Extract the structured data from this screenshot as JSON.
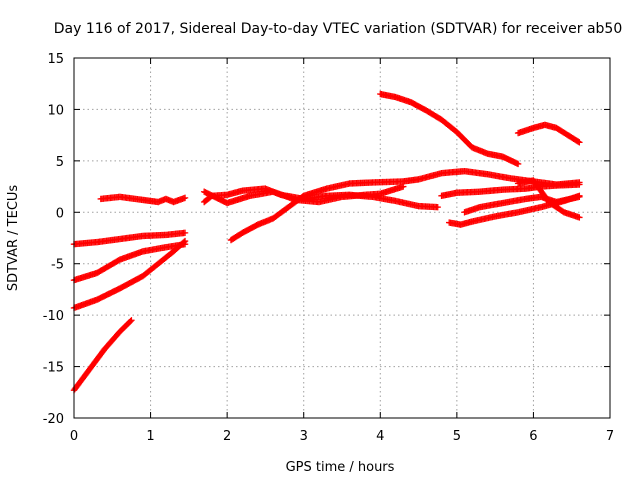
{
  "chart_data": {
    "type": "scatter",
    "title": "Day 116 of 2017, Sidereal Day-to-day VTEC variation (SDTVAR) for receiver ab50",
    "xlabel": "GPS time / hours",
    "ylabel": "SDTVAR / TECUs",
    "xlim": [
      0,
      7
    ],
    "ylim": [
      -20,
      15
    ],
    "x_ticks": [
      "0",
      "1",
      "2",
      "3",
      "4",
      "5",
      "6",
      "7"
    ],
    "y_ticks": [
      "-20",
      "-15",
      "-10",
      "-5",
      "0",
      "5",
      "10",
      "15"
    ],
    "grid": true,
    "legend": "none",
    "marker": "plus",
    "series_color": "#ff0000",
    "series": [
      {
        "x": [
          0.0,
          0.2,
          0.4,
          0.6,
          0.75
        ],
        "y": [
          -17.3,
          -15.3,
          -13.3,
          -11.6,
          -10.5
        ]
      },
      {
        "x": [
          0.0,
          0.3,
          0.6,
          0.9,
          1.1,
          1.3,
          1.45
        ],
        "y": [
          -9.3,
          -8.5,
          -7.4,
          -6.2,
          -5.0,
          -3.8,
          -2.8
        ]
      },
      {
        "x": [
          0.0,
          0.3,
          0.6,
          0.9,
          1.2,
          1.45
        ],
        "y": [
          -6.6,
          -5.9,
          -4.6,
          -3.8,
          -3.4,
          -3.1
        ]
      },
      {
        "x": [
          0.0,
          0.3,
          0.6,
          0.9,
          1.2,
          1.45
        ],
        "y": [
          -3.1,
          -2.9,
          -2.6,
          -2.3,
          -2.2,
          -2.0
        ]
      },
      {
        "x": [
          0.35,
          0.6,
          0.9,
          1.1,
          1.2,
          1.3,
          1.45
        ],
        "y": [
          1.3,
          1.5,
          1.2,
          1.0,
          1.3,
          1.0,
          1.4
        ]
      },
      {
        "x": [
          1.7,
          1.8,
          2.0,
          2.2,
          2.5,
          2.7,
          3.0,
          3.3,
          3.6,
          3.9,
          4.2,
          4.5,
          4.75
        ],
        "y": [
          1.0,
          1.6,
          1.7,
          2.1,
          2.3,
          1.7,
          1.3,
          1.6,
          1.7,
          1.5,
          1.1,
          0.6,
          0.5
        ]
      },
      {
        "x": [
          1.7,
          2.0,
          2.3,
          2.6,
          2.9,
          3.2,
          3.5,
          3.8,
          4.0,
          4.3
        ],
        "y": [
          2.0,
          0.9,
          1.6,
          2.0,
          1.2,
          1.0,
          1.5,
          1.7,
          1.8,
          2.5
        ]
      },
      {
        "x": [
          2.05,
          2.2,
          2.4,
          2.6,
          2.8,
          3.0,
          3.3,
          3.6,
          3.9,
          4.3,
          4.5,
          4.8,
          5.1,
          5.4,
          5.7,
          6.0,
          6.3,
          6.6
        ],
        "y": [
          -2.7,
          -2.0,
          -1.2,
          -0.6,
          0.5,
          1.6,
          2.3,
          2.8,
          2.9,
          3.0,
          3.2,
          3.8,
          4.0,
          3.7,
          3.3,
          3.0,
          2.7,
          2.9
        ]
      },
      {
        "x": [
          4.0,
          4.2,
          4.4,
          4.6,
          4.8,
          5.0,
          5.2,
          5.4,
          5.6,
          5.8
        ],
        "y": [
          11.5,
          11.2,
          10.7,
          9.9,
          9.0,
          7.8,
          6.3,
          5.7,
          5.4,
          4.7
        ]
      },
      {
        "x": [
          5.8,
          6.0,
          6.15,
          6.3,
          6.45,
          6.6
        ],
        "y": [
          7.7,
          8.2,
          8.5,
          8.2,
          7.5,
          6.8
        ]
      },
      {
        "x": [
          4.8,
          5.0,
          5.3,
          5.6,
          5.9,
          6.1,
          6.3,
          6.6
        ],
        "y": [
          1.6,
          1.9,
          2.0,
          2.2,
          2.3,
          2.5,
          2.6,
          2.7
        ]
      },
      {
        "x": [
          4.9,
          5.05,
          5.2,
          5.5,
          5.8,
          6.1,
          6.4,
          6.6
        ],
        "y": [
          -1.0,
          -1.2,
          -0.9,
          -0.4,
          0.0,
          0.5,
          1.1,
          1.6
        ]
      },
      {
        "x": [
          5.1,
          5.3,
          5.6,
          5.9,
          6.1,
          6.3,
          6.6
        ],
        "y": [
          0.0,
          0.5,
          0.9,
          1.3,
          1.5,
          1.0,
          1.5
        ]
      },
      {
        "x": [
          5.8,
          6.0,
          6.2,
          6.4,
          6.6
        ],
        "y": [
          2.8,
          3.1,
          1.0,
          0.0,
          -0.5
        ]
      }
    ]
  }
}
